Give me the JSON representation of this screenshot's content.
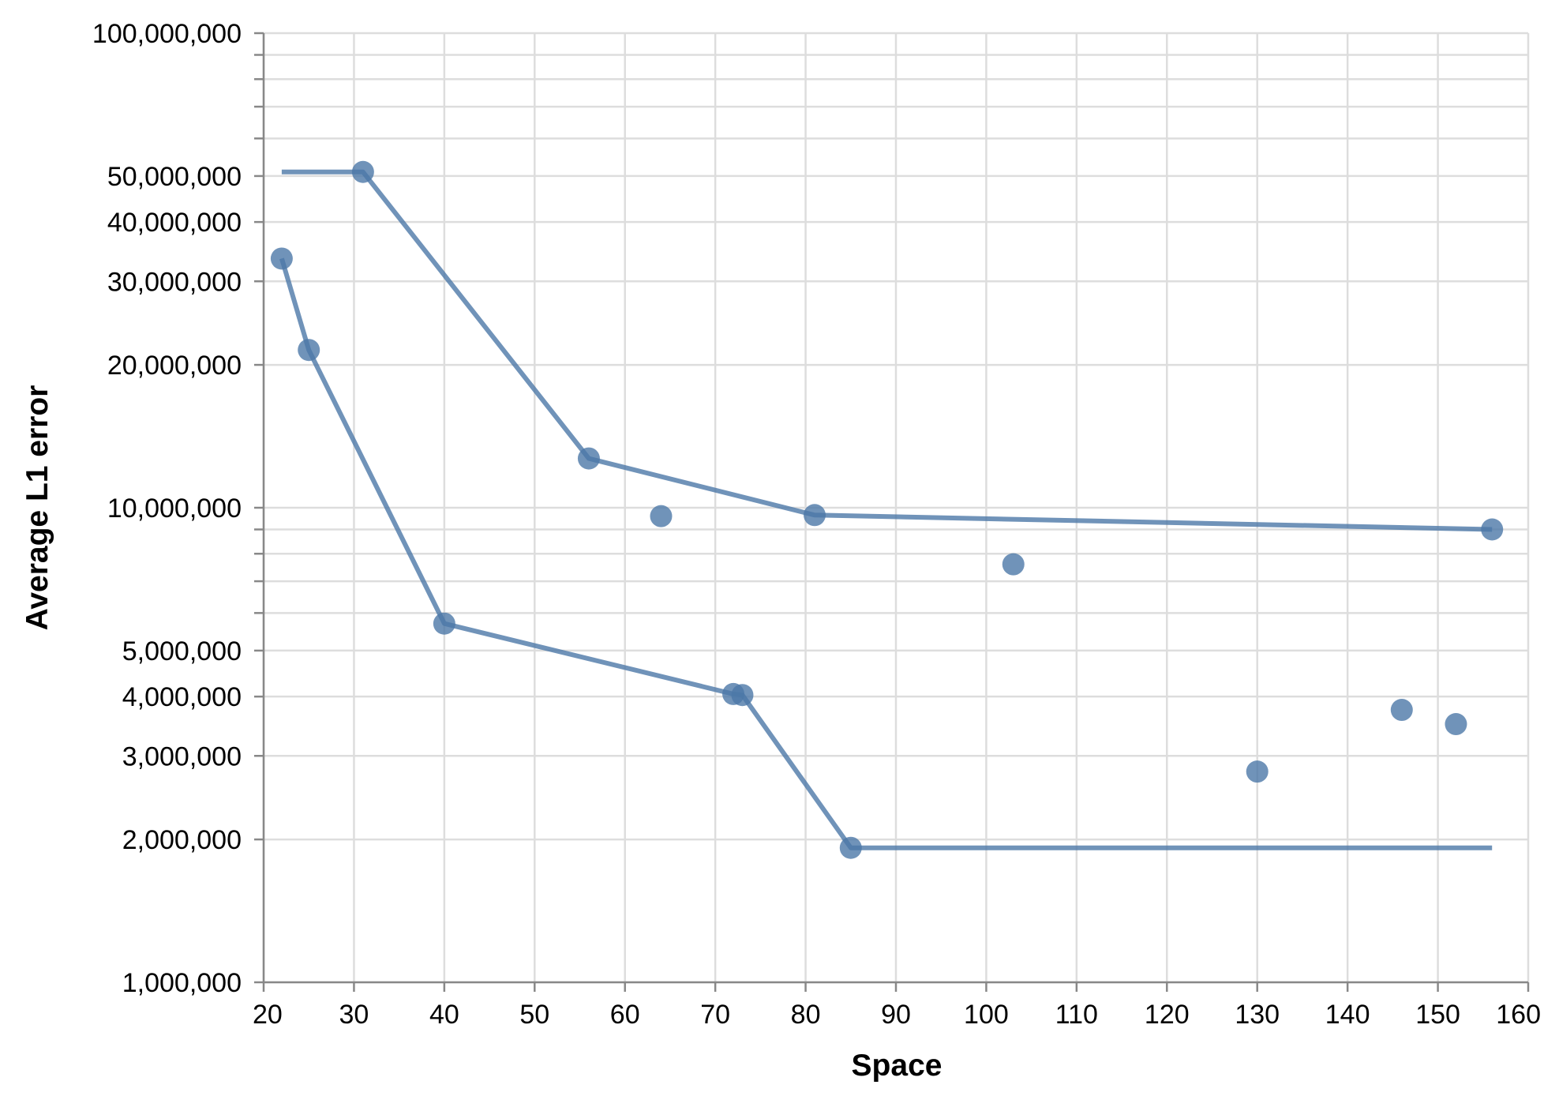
{
  "chart_data": {
    "type": "scatter",
    "xlabel": "Space",
    "ylabel": "Average L1 error",
    "xlim": [
      20,
      160
    ],
    "ylim": [
      1000000,
      100000000
    ],
    "y_scale": "log",
    "grid": true,
    "legend": "none",
    "color": "#4c78a8",
    "x_ticks": [
      20,
      30,
      40,
      50,
      60,
      70,
      80,
      90,
      100,
      110,
      120,
      130,
      140,
      150,
      160
    ],
    "x_tick_labels": [
      "20",
      "30",
      "40",
      "50",
      "60",
      "70",
      "80",
      "90",
      "100",
      "110",
      "120",
      "130",
      "140",
      "150",
      "160"
    ],
    "y_ticks": [
      1000000,
      2000000,
      3000000,
      4000000,
      5000000,
      10000000,
      20000000,
      30000000,
      40000000,
      50000000,
      100000000
    ],
    "y_tick_labels": [
      "1,000,000",
      "2,000,000",
      "3,000,000",
      "4,000,000",
      "5,000,000",
      "10,000,000",
      "20,000,000",
      "30,000,000",
      "40,000,000",
      "50,000,000",
      "100,000,000"
    ],
    "y_minor_ticks": [
      6000000,
      7000000,
      8000000,
      9000000,
      60000000,
      70000000,
      80000000,
      90000000
    ],
    "points": [
      {
        "x": 22,
        "y": 33500000
      },
      {
        "x": 25,
        "y": 21500000
      },
      {
        "x": 31,
        "y": 51000000
      },
      {
        "x": 40,
        "y": 5700000
      },
      {
        "x": 56,
        "y": 12700000
      },
      {
        "x": 64,
        "y": 9600000
      },
      {
        "x": 72,
        "y": 4050000
      },
      {
        "x": 73,
        "y": 4030000
      },
      {
        "x": 81,
        "y": 9650000
      },
      {
        "x": 85,
        "y": 1920000
      },
      {
        "x": 103,
        "y": 7600000
      },
      {
        "x": 130,
        "y": 2780000
      },
      {
        "x": 146,
        "y": 3750000
      },
      {
        "x": 152,
        "y": 3500000
      },
      {
        "x": 156,
        "y": 9000000
      }
    ],
    "series": [
      {
        "x": [
          22,
          31,
          56,
          81,
          156
        ],
        "y": [
          51000000,
          51000000,
          12700000,
          9650000,
          9000000
        ]
      },
      {
        "x": [
          22,
          25,
          40,
          72,
          73,
          85,
          156
        ],
        "y": [
          33500000,
          21500000,
          5700000,
          4050000,
          4030000,
          1920000,
          1920000
        ]
      }
    ]
  }
}
